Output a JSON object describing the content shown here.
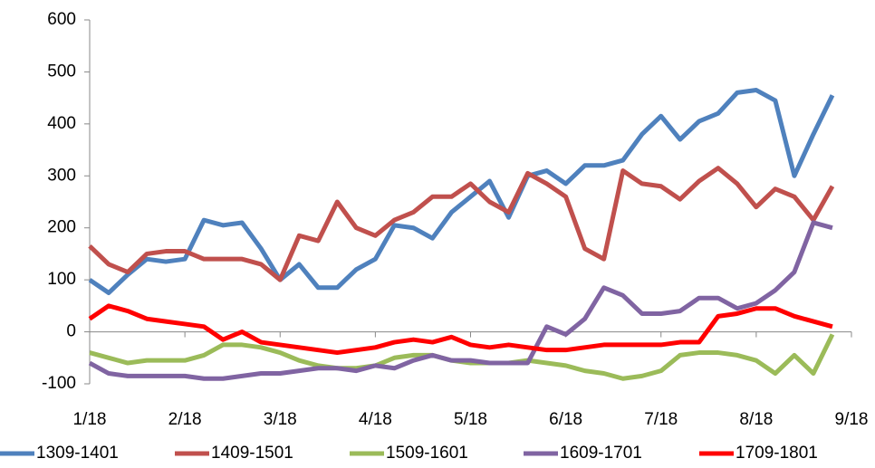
{
  "chart_data": {
    "type": "line",
    "x": [
      0,
      0.2,
      0.4,
      0.6,
      0.8,
      1,
      1.2,
      1.4,
      1.6,
      1.8,
      2,
      2.2,
      2.4,
      2.6,
      2.8,
      3,
      3.2,
      3.4,
      3.6,
      3.8,
      4,
      4.2,
      4.4,
      4.6,
      4.8,
      5,
      5.2,
      5.4,
      5.6,
      5.8,
      6,
      6.2,
      6.4,
      6.6,
      6.8,
      7,
      7.2,
      7.4,
      7.6,
      7.8
    ],
    "series": [
      {
        "name": "1309-1401",
        "color": "#4f81bd",
        "values": [
          100,
          75,
          110,
          140,
          135,
          140,
          215,
          205,
          210,
          160,
          100,
          130,
          85,
          85,
          120,
          140,
          205,
          200,
          180,
          230,
          260,
          290,
          220,
          300,
          310,
          285,
          320,
          320,
          330,
          380,
          415,
          370,
          405,
          420,
          460,
          465,
          445,
          300,
          380,
          455
        ]
      },
      {
        "name": "1409-1501",
        "color": "#c0504d",
        "values": [
          165,
          130,
          115,
          150,
          155,
          155,
          140,
          140,
          140,
          130,
          100,
          185,
          175,
          250,
          200,
          185,
          215,
          230,
          260,
          260,
          285,
          250,
          230,
          305,
          285,
          260,
          160,
          140,
          310,
          285,
          280,
          255,
          290,
          315,
          285,
          240,
          275,
          260,
          215,
          280
        ]
      },
      {
        "name": "1509-1601",
        "color": "#9bbb59",
        "values": [
          -40,
          -50,
          -60,
          -55,
          -55,
          -55,
          -45,
          -25,
          -25,
          -30,
          -40,
          -55,
          -65,
          -70,
          -70,
          -65,
          -50,
          -45,
          -45,
          -55,
          -60,
          -60,
          -60,
          -55,
          -60,
          -65,
          -75,
          -80,
          -90,
          -85,
          -75,
          -45,
          -40,
          -40,
          -45,
          -55,
          -80,
          -45,
          -80,
          -5
        ]
      },
      {
        "name": "1609-1701",
        "color": "#8064a2",
        "values": [
          -60,
          -80,
          -85,
          -85,
          -85,
          -85,
          -90,
          -90,
          -85,
          -80,
          -80,
          -75,
          -70,
          -70,
          -75,
          -65,
          -70,
          -55,
          -45,
          -55,
          -55,
          -60,
          -60,
          -60,
          10,
          -5,
          25,
          85,
          70,
          35,
          35,
          40,
          65,
          65,
          45,
          55,
          80,
          115,
          210,
          200
        ]
      },
      {
        "name": "1709-1801",
        "color": "#ff0000",
        "values": [
          25,
          50,
          40,
          25,
          20,
          15,
          10,
          -15,
          0,
          -20,
          -25,
          -30,
          -35,
          -40,
          -35,
          -30,
          -20,
          -15,
          -20,
          -10,
          -25,
          -30,
          -25,
          -30,
          -35,
          -35,
          -30,
          -25,
          -25,
          -25,
          -25,
          -20,
          -20,
          30,
          35,
          45,
          45,
          30,
          20,
          10
        ]
      }
    ],
    "xlim": [
      0,
      8
    ],
    "xticks": [
      {
        "value": 0,
        "label": "1/18"
      },
      {
        "value": 1,
        "label": "2/18"
      },
      {
        "value": 2,
        "label": "3/18"
      },
      {
        "value": 3,
        "label": "4/18"
      },
      {
        "value": 4,
        "label": "5/18"
      },
      {
        "value": 5,
        "label": "6/18"
      },
      {
        "value": 6,
        "label": "7/18"
      },
      {
        "value": 7,
        "label": "8/18"
      },
      {
        "value": 8,
        "label": "9/18"
      }
    ],
    "ylim": [
      -100,
      600
    ],
    "yticks": [
      -100,
      0,
      100,
      200,
      300,
      400,
      500,
      600
    ],
    "legend": "bottom"
  }
}
